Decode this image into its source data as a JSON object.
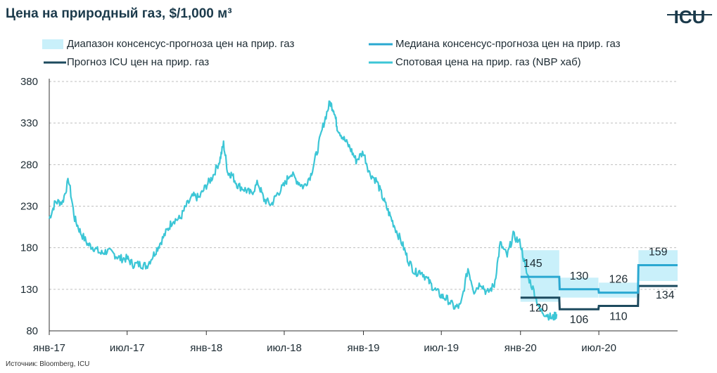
{
  "title": "Цена на природный газ, $/1,000 м³",
  "logo_text": "ICU",
  "source": "Источник: Bloomberg, ICU",
  "colors": {
    "band": "#c9f0fa",
    "median": "#2aa8d1",
    "icu": "#1d4a5e",
    "spot": "#3cc6d6",
    "grid": "#bfbfbf",
    "text": "#1d2b33"
  },
  "legend": [
    {
      "label": "Диапазон консенсус-прогноза цен на прир. газ",
      "swatch": "band"
    },
    {
      "label": "Медиана консенсус-прогноза цен на прир. газ",
      "swatch": "median"
    },
    {
      "label": "Прогноз ICU цен на прир. газ",
      "swatch": "icu"
    },
    {
      "label": "Спотовая цена на прир. газ (NBP хаб)",
      "swatch": "spot"
    }
  ],
  "chart_data": {
    "type": "line",
    "title": "Цена на природный газ, $/1,000 м³",
    "xlabel": "",
    "ylabel": "",
    "ylim": [
      80,
      380
    ],
    "yticks": [
      80,
      130,
      180,
      230,
      280,
      330,
      380
    ],
    "xticks": [
      "янв-17",
      "июл-17",
      "янв-18",
      "июл-18",
      "янв-19",
      "июл-19",
      "янв-20",
      "июл-20"
    ],
    "grid": "horizontal dashed",
    "legend_position": "top",
    "series": [
      {
        "name": "Спотовая цена на прир. газ (NBP хаб)",
        "kind": "line",
        "points": [
          [
            "2017-01-01",
            215
          ],
          [
            "2017-01-15",
            235
          ],
          [
            "2017-02-01",
            235
          ],
          [
            "2017-02-15",
            262
          ],
          [
            "2017-03-01",
            215
          ],
          [
            "2017-03-15",
            198
          ],
          [
            "2017-04-01",
            184
          ],
          [
            "2017-04-15",
            180
          ],
          [
            "2017-05-01",
            173
          ],
          [
            "2017-05-15",
            176
          ],
          [
            "2017-06-01",
            172
          ],
          [
            "2017-06-15",
            167
          ],
          [
            "2017-07-01",
            167
          ],
          [
            "2017-07-15",
            160
          ],
          [
            "2017-08-01",
            160
          ],
          [
            "2017-08-15",
            158
          ],
          [
            "2017-09-01",
            172
          ],
          [
            "2017-09-15",
            185
          ],
          [
            "2017-10-01",
            200
          ],
          [
            "2017-10-15",
            213
          ],
          [
            "2017-11-01",
            215
          ],
          [
            "2017-11-15",
            230
          ],
          [
            "2017-12-01",
            242
          ],
          [
            "2017-12-15",
            240
          ],
          [
            "2018-01-01",
            255
          ],
          [
            "2018-01-15",
            265
          ],
          [
            "2018-02-01",
            285
          ],
          [
            "2018-02-10",
            305
          ],
          [
            "2018-02-20",
            270
          ],
          [
            "2018-03-01",
            268
          ],
          [
            "2018-03-15",
            255
          ],
          [
            "2018-04-01",
            250
          ],
          [
            "2018-04-15",
            245
          ],
          [
            "2018-05-01",
            258
          ],
          [
            "2018-05-15",
            238
          ],
          [
            "2018-06-01",
            232
          ],
          [
            "2018-06-15",
            245
          ],
          [
            "2018-07-01",
            255
          ],
          [
            "2018-07-15",
            270
          ],
          [
            "2018-08-01",
            260
          ],
          [
            "2018-08-15",
            253
          ],
          [
            "2018-09-01",
            268
          ],
          [
            "2018-09-15",
            295
          ],
          [
            "2018-10-01",
            330
          ],
          [
            "2018-10-15",
            355
          ],
          [
            "2018-10-25",
            345
          ],
          [
            "2018-11-01",
            325
          ],
          [
            "2018-11-15",
            312
          ],
          [
            "2018-12-01",
            300
          ],
          [
            "2018-12-15",
            285
          ],
          [
            "2019-01-01",
            295
          ],
          [
            "2019-01-15",
            270
          ],
          [
            "2019-02-01",
            260
          ],
          [
            "2019-02-15",
            240
          ],
          [
            "2019-03-01",
            222
          ],
          [
            "2019-03-15",
            205
          ],
          [
            "2019-04-01",
            185
          ],
          [
            "2019-04-15",
            165
          ],
          [
            "2019-05-01",
            150
          ],
          [
            "2019-05-15",
            152
          ],
          [
            "2019-06-01",
            140
          ],
          [
            "2019-06-15",
            130
          ],
          [
            "2019-07-01",
            122
          ],
          [
            "2019-07-15",
            118
          ],
          [
            "2019-08-01",
            108
          ],
          [
            "2019-08-15",
            110
          ],
          [
            "2019-09-01",
            155
          ],
          [
            "2019-09-15",
            128
          ],
          [
            "2019-10-01",
            138
          ],
          [
            "2019-10-15",
            125
          ],
          [
            "2019-11-01",
            135
          ],
          [
            "2019-11-15",
            185
          ],
          [
            "2019-12-01",
            170
          ],
          [
            "2019-12-15",
            195
          ],
          [
            "2020-01-01",
            185
          ],
          [
            "2020-01-15",
            150
          ],
          [
            "2020-02-01",
            128
          ],
          [
            "2020-02-15",
            105
          ],
          [
            "2020-03-01",
            100
          ],
          [
            "2020-03-15",
            95
          ],
          [
            "2020-03-25",
            100
          ]
        ]
      },
      {
        "name": "Прогноз ICU цен на прир. газ",
        "kind": "step",
        "segments": [
          {
            "from": "2020-01-01",
            "to": "2020-03-31",
            "value": 120
          },
          {
            "from": "2020-04-01",
            "to": "2020-06-30",
            "value": 106
          },
          {
            "from": "2020-07-01",
            "to": "2020-09-30",
            "value": 110
          },
          {
            "from": "2020-10-01",
            "to": "2020-12-31",
            "value": 134
          }
        ]
      },
      {
        "name": "Медиана консенсус-прогноза цен на прир. газ",
        "kind": "step",
        "segments": [
          {
            "from": "2020-01-01",
            "to": "2020-03-31",
            "value": 145
          },
          {
            "from": "2020-04-01",
            "to": "2020-06-30",
            "value": 130
          },
          {
            "from": "2020-07-01",
            "to": "2020-09-30",
            "value": 126
          },
          {
            "from": "2020-10-01",
            "to": "2020-12-31",
            "value": 159
          }
        ]
      },
      {
        "name": "Диапазон консенсус-прогноза цен на прир. газ",
        "kind": "band",
        "segments": [
          {
            "from": "2020-01-01",
            "to": "2020-03-31",
            "low": 115,
            "high": 177
          },
          {
            "from": "2020-04-01",
            "to": "2020-06-30",
            "low": 120,
            "high": 144
          },
          {
            "from": "2020-07-01",
            "to": "2020-09-30",
            "low": 120,
            "high": 138
          },
          {
            "from": "2020-10-01",
            "to": "2020-12-31",
            "low": 140,
            "high": 177
          }
        ]
      }
    ],
    "data_labels": {
      "median": [
        "145",
        "130",
        "126",
        "159"
      ],
      "icu": [
        "120",
        "106",
        "110",
        "134"
      ]
    }
  }
}
